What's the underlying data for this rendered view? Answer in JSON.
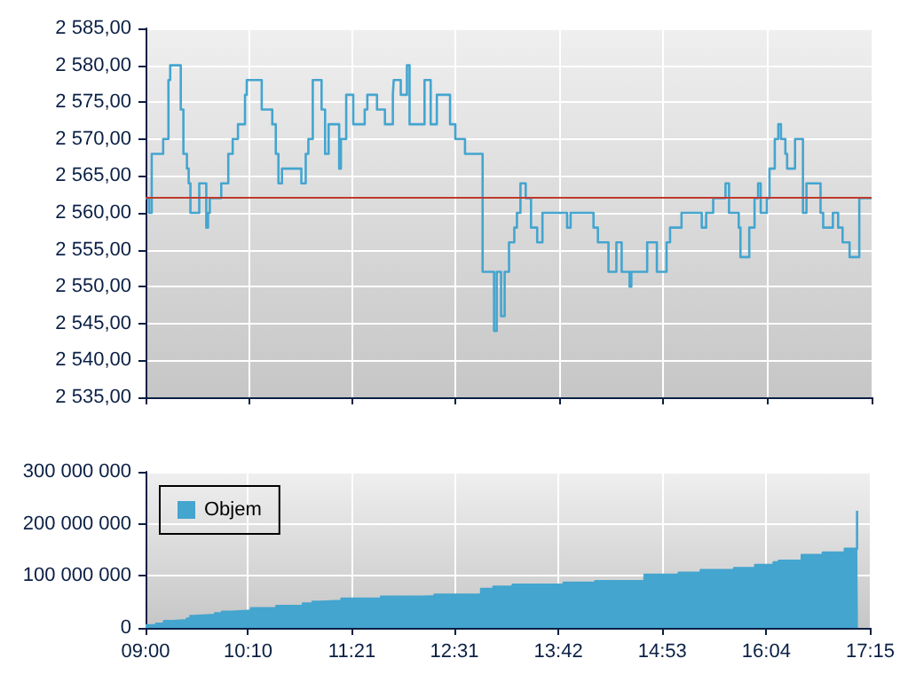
{
  "chart_data": [
    {
      "type": "step",
      "xlim": [
        9,
        17.25
      ],
      "xticks": [
        {
          "value": 9,
          "label": null
        },
        {
          "value": 10.1667,
          "label": null
        },
        {
          "value": 11.35,
          "label": null
        },
        {
          "value": 12.5167,
          "label": null
        },
        {
          "value": 13.7,
          "label": null
        },
        {
          "value": 14.8833,
          "label": null
        },
        {
          "value": 16.0667,
          "label": null
        },
        {
          "value": 17.25,
          "label": null
        }
      ],
      "ylim": [
        2535,
        2585
      ],
      "yticks": [
        {
          "value": 2535,
          "label": "2 535,00"
        },
        {
          "value": 2540,
          "label": "2 540,00"
        },
        {
          "value": 2545,
          "label": "2 545,00"
        },
        {
          "value": 2550,
          "label": "2 550,00"
        },
        {
          "value": 2555,
          "label": "2 555,00"
        },
        {
          "value": 2560,
          "label": "2 560,00"
        },
        {
          "value": 2565,
          "label": "2 565,00"
        },
        {
          "value": 2570,
          "label": "2 570,00"
        },
        {
          "value": 2575,
          "label": "2 575,00"
        },
        {
          "value": 2580,
          "label": "2 580,00"
        },
        {
          "value": 2585,
          "label": "2 585,00"
        }
      ],
      "tick_labels": "y",
      "grid": true,
      "ref_lines": [
        {
          "axis": "y",
          "value": 2562,
          "color": "#c0392b"
        }
      ],
      "series": [
        {
          "color": "#44a5cf",
          "x": [
            9.0,
            9.02,
            9.04,
            9.07,
            9.2,
            9.26,
            9.28,
            9.4,
            9.43,
            9.47,
            9.49,
            9.51,
            9.61,
            9.69,
            9.71,
            9.73,
            9.86,
            9.94,
            9.99,
            10.05,
            10.13,
            10.15,
            10.32,
            10.44,
            10.48,
            10.51,
            10.55,
            10.77,
            10.82,
            10.85,
            10.9,
            11.0,
            11.04,
            11.08,
            11.2,
            11.22,
            11.28,
            11.36,
            11.49,
            11.52,
            11.63,
            11.72,
            11.81,
            11.82,
            11.9,
            11.97,
            12.0,
            12.17,
            12.24,
            12.31,
            12.46,
            12.52,
            12.63,
            12.83,
            12.96,
            12.99,
            13.04,
            13.08,
            13.13,
            13.19,
            13.22,
            13.26,
            13.32,
            13.38,
            13.45,
            13.51,
            13.79,
            13.83,
            14.09,
            14.14,
            14.26,
            14.35,
            14.41,
            14.5,
            14.52,
            14.7,
            14.81,
            14.92,
            14.96,
            15.09,
            15.32,
            15.37,
            15.45,
            15.59,
            15.63,
            15.74,
            15.76,
            15.86,
            15.92,
            15.96,
            15.99,
            16.06,
            16.09,
            16.15,
            16.19,
            16.22,
            16.27,
            16.29,
            16.38,
            16.47,
            16.51,
            16.67,
            16.7,
            16.81,
            16.87,
            16.92,
            17.0,
            17.11,
            17.25
          ],
          "values": [
            2562,
            2562,
            2560,
            2568,
            2570,
            2578,
            2580,
            2574,
            2568,
            2566,
            2564,
            2560,
            2564,
            2558,
            2560,
            2562,
            2564,
            2568,
            2570,
            2572,
            2576,
            2578,
            2574,
            2572,
            2568,
            2564,
            2566,
            2564,
            2568,
            2570,
            2578,
            2574,
            2568,
            2572,
            2566,
            2570,
            2576,
            2572,
            2574,
            2576,
            2574,
            2572,
            2576,
            2578,
            2576,
            2580,
            2572,
            2578,
            2572,
            2576,
            2572,
            2570,
            2568,
            2552,
            2544,
            2552,
            2546,
            2552,
            2556,
            2558,
            2560,
            2564,
            2562,
            2558,
            2556,
            2560,
            2558,
            2560,
            2558,
            2556,
            2552,
            2556,
            2552,
            2550,
            2552,
            2556,
            2552,
            2556,
            2558,
            2560,
            2558,
            2560,
            2562,
            2564,
            2560,
            2558,
            2554,
            2558,
            2562,
            2564,
            2560,
            2562,
            2566,
            2570,
            2572,
            2570,
            2568,
            2566,
            2570,
            2560,
            2564,
            2560,
            2558,
            2560,
            2558,
            2556,
            2554,
            2562,
            2562
          ]
        }
      ]
    },
    {
      "type": "area",
      "xlim": [
        9,
        17.25
      ],
      "xticks": [
        {
          "value": 9,
          "label": "09:00"
        },
        {
          "value": 10.1667,
          "label": "10:10"
        },
        {
          "value": 11.35,
          "label": "11:21"
        },
        {
          "value": 12.5167,
          "label": "12:31"
        },
        {
          "value": 13.7,
          "label": "13:42"
        },
        {
          "value": 14.8833,
          "label": "14:53"
        },
        {
          "value": 16.0667,
          "label": "16:04"
        },
        {
          "value": 17.25,
          "label": "17:15"
        }
      ],
      "ylim": [
        0,
        300000000
      ],
      "yticks": [
        0,
        {
          "value": 100000000,
          "label": "100 000 000"
        },
        {
          "value": 200000000,
          "label": "200 000 000"
        },
        {
          "value": 300000000,
          "label": "300 000 000"
        }
      ],
      "grid": true,
      "legend": "top left",
      "series": [
        {
          "name": "Objem",
          "color": "#44a5cf",
          "x": [
            9.0,
            9.12,
            9.12,
            9.21,
            9.21,
            9.31,
            9.31,
            9.47,
            9.47,
            9.51,
            9.51,
            9.56,
            9.56,
            9.79,
            9.79,
            9.87,
            9.87,
            9.98,
            9.98,
            10.2,
            10.2,
            10.49,
            10.49,
            10.79,
            10.79,
            10.9,
            10.9,
            10.99,
            10.99,
            11.23,
            11.23,
            11.68,
            11.68,
            12.16,
            12.16,
            12.29,
            12.29,
            12.82,
            12.82,
            12.96,
            12.96,
            13.18,
            13.18,
            13.76,
            13.76,
            14.12,
            14.12,
            14.68,
            14.68,
            15.07,
            15.07,
            15.32,
            15.32,
            15.7,
            15.7,
            15.94,
            15.94,
            16.15,
            16.15,
            16.21,
            16.21,
            16.47,
            16.47,
            16.71,
            16.71,
            16.96,
            16.96,
            17.1,
            17.1,
            17.11
          ],
          "values": [
            5000000,
            5000000,
            8000000,
            8000000,
            13000000,
            13000000,
            15000000,
            15000000,
            18000000,
            18000000,
            23000000,
            23000000,
            25000000,
            25000000,
            28000000,
            28000000,
            31000000,
            31000000,
            33000000,
            33000000,
            38000000,
            38000000,
            42000000,
            42000000,
            47000000,
            47000000,
            50000000,
            50000000,
            52000000,
            52000000,
            56000000,
            56000000,
            60000000,
            60000000,
            61000000,
            61000000,
            64000000,
            64000000,
            75000000,
            75000000,
            79000000,
            79000000,
            83000000,
            83000000,
            87000000,
            87000000,
            90000000,
            90000000,
            102000000,
            102000000,
            106000000,
            106000000,
            111000000,
            111000000,
            115000000,
            115000000,
            121000000,
            121000000,
            126000000,
            126000000,
            129000000,
            129000000,
            140000000,
            140000000,
            145000000,
            145000000,
            152000000,
            152000000,
            225000000,
            225000000
          ]
        }
      ]
    }
  ]
}
